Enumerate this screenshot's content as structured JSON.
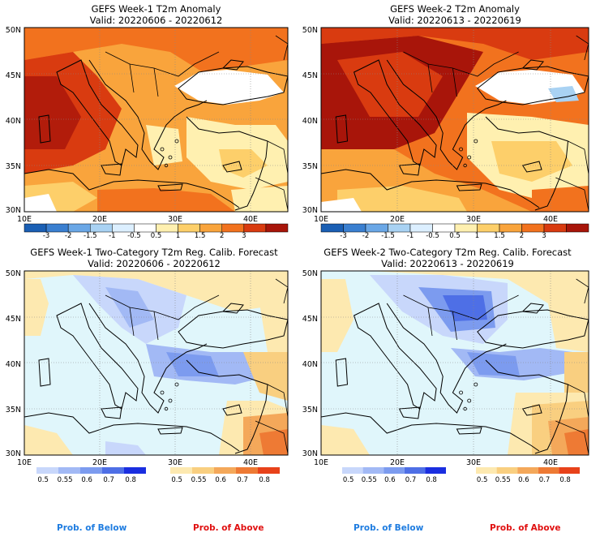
{
  "panels": [
    {
      "id": "w1-anom",
      "title": "GEFS Week-1 T2m Anomaly",
      "valid": "Valid: 20220606 - 20220612",
      "lat_labels": [
        "50N",
        "45N",
        "40N",
        "35N",
        "30N"
      ],
      "lon_labels": [
        "10E",
        "20E",
        "30E",
        "40E"
      ],
      "colorbar": {
        "ticks": [
          "-3",
          "-2",
          "-1.5",
          "-1",
          "-0.5",
          "0.5",
          "1",
          "1.5",
          "2",
          "3"
        ],
        "colors": [
          "#1a5fb4",
          "#3a7fd0",
          "#6aa7e6",
          "#a9d2f3",
          "#dcefff",
          "#ffffff",
          "#fff0b0",
          "#fdcf6a",
          "#f9a43c",
          "#f2721e",
          "#d93b10",
          "#a8150a"
        ]
      }
    },
    {
      "id": "w2-anom",
      "title": "GEFS Week-2 T2m Anomaly",
      "valid": "Valid: 20220613 - 20220619",
      "lat_labels": [
        "50N",
        "45N",
        "40N",
        "35N",
        "30N"
      ],
      "lon_labels": [
        "10E",
        "20E",
        "30E",
        "40E"
      ],
      "colorbar": {
        "ticks": [
          "-3",
          "-2",
          "-1.5",
          "-1",
          "-0.5",
          "0.5",
          "1",
          "1.5",
          "2",
          "3"
        ],
        "colors": [
          "#1a5fb4",
          "#3a7fd0",
          "#6aa7e6",
          "#a9d2f3",
          "#dcefff",
          "#ffffff",
          "#fff0b0",
          "#fdcf6a",
          "#f9a43c",
          "#f2721e",
          "#d93b10",
          "#a8150a"
        ]
      }
    },
    {
      "id": "w1-prob",
      "title": "GEFS Week-1 Two-Category T2m Reg. Calib. Forecast",
      "valid": "Valid: 20220606 - 20220612",
      "lat_labels": [
        "50N",
        "45N",
        "40N",
        "35N",
        "30N"
      ],
      "lon_labels": [
        "10E",
        "20E",
        "30E",
        "40E"
      ]
    },
    {
      "id": "w2-prob",
      "title": "GEFS Week-2 Two-Category T2m Reg. Calib. Forecast",
      "valid": "Valid: 20220613 - 20220619",
      "lat_labels": [
        "50N",
        "45N",
        "40N",
        "35N",
        "30N"
      ],
      "lon_labels": [
        "10E",
        "20E",
        "30E",
        "40E"
      ]
    }
  ],
  "prob_colorbars": {
    "below": {
      "ticks": [
        "0.5",
        "0.55",
        "0.6",
        "0.7",
        "0.8"
      ],
      "colors": [
        "#c8d7fb",
        "#a2b9f5",
        "#7c9bef",
        "#4e6fe6",
        "#1a2ee0"
      ]
    },
    "above": {
      "ticks": [
        "0.5",
        "0.55",
        "0.6",
        "0.7",
        "0.8"
      ],
      "colors": [
        "#fde9b0",
        "#f9cf80",
        "#f4a85a",
        "#ee7a34",
        "#e8421a"
      ]
    }
  },
  "footer": {
    "below_label": "Prob. of Below",
    "above_label": "Prob. of Above",
    "below_color": "#1e7ce0",
    "above_color": "#e01010"
  }
}
